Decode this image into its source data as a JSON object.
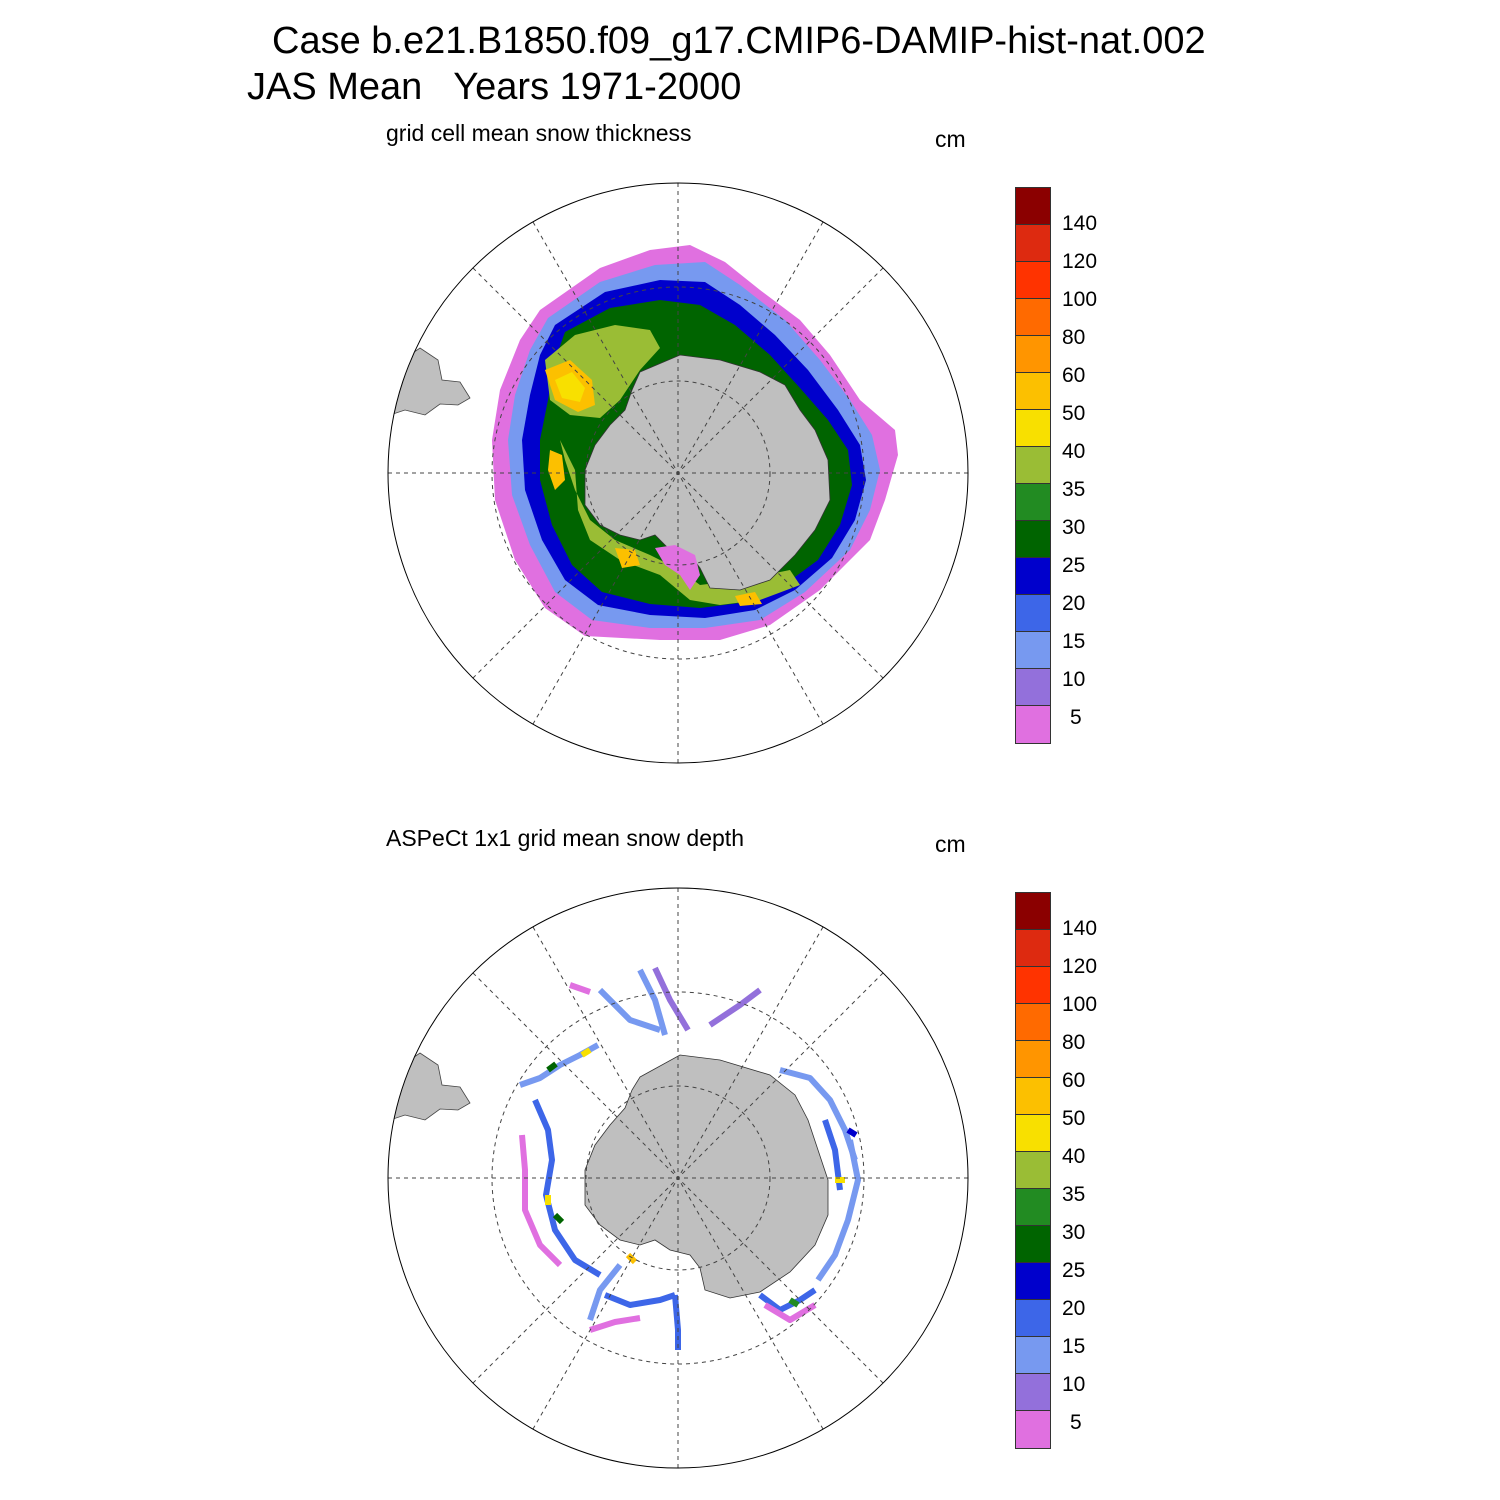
{
  "title": {
    "line1": "Case b.e21.B1850.f09_g17.CMIP6-DAMIP-hist-nat.002",
    "line2": "JAS Mean   Years 1971-2000"
  },
  "colors": {
    "land": "#bfbfbf",
    "levels": [
      "#e070e0",
      "#9370db",
      "#7799f0",
      "#3d66e8",
      "#0000cc",
      "#006400",
      "#228b22",
      "#9abd35",
      "#f8e000",
      "#fcc000",
      "#ff9500",
      "#ff6a00",
      "#ff3300",
      "#dd2a10",
      "#8b0000"
    ]
  },
  "colorbar_ticks": [
    "5",
    "10",
    "15",
    "20",
    "25",
    "30",
    "35",
    "40",
    "50",
    "60",
    "80",
    "100",
    "120",
    "140"
  ],
  "panels": [
    {
      "id": "top",
      "subtitle": "grid cell mean snow thickness",
      "unit": "cm"
    },
    {
      "id": "bottom",
      "subtitle": "ASPeCt 1x1 grid mean snow depth",
      "unit": "cm"
    }
  ]
}
